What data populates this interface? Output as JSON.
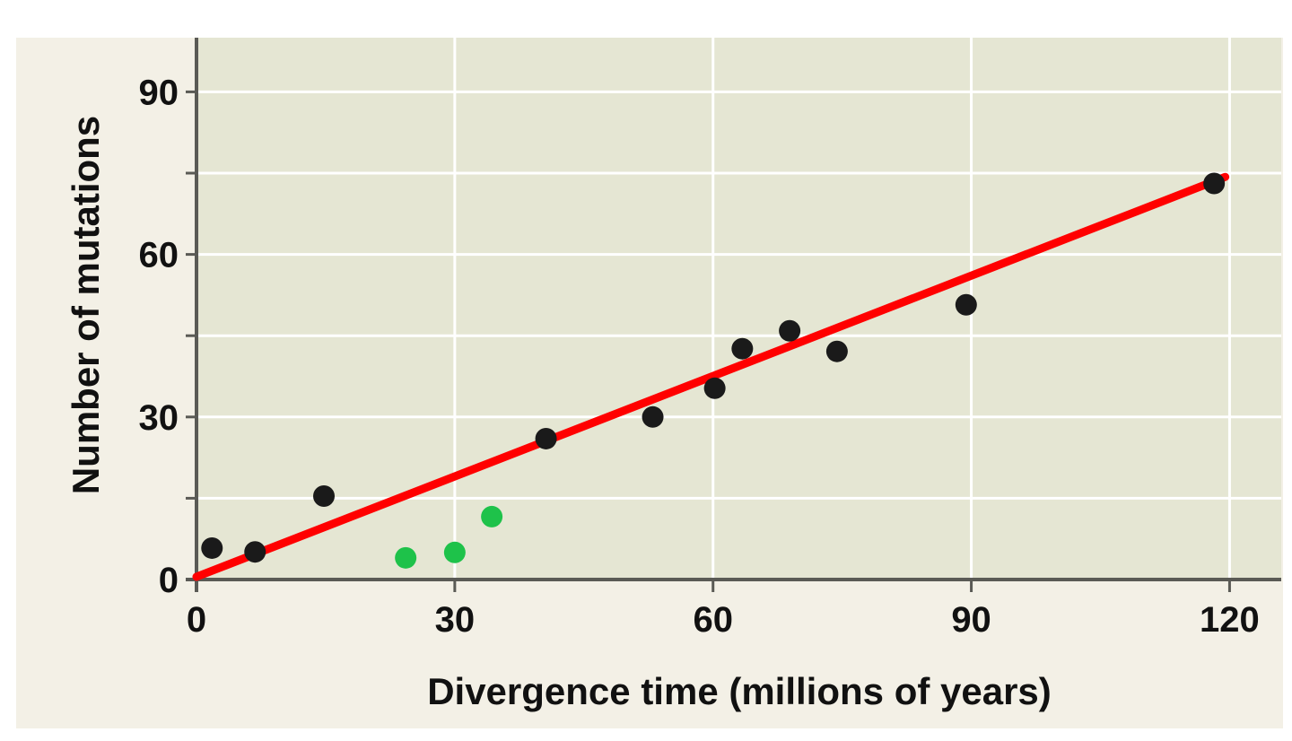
{
  "chart_data": {
    "type": "scatter",
    "title": "",
    "xlabel": "Divergence time (millions of years)",
    "ylabel": "Number of mutations",
    "xlim": [
      0,
      126
    ],
    "ylim": [
      0,
      100
    ],
    "xticks": [
      0,
      30,
      60,
      90,
      120
    ],
    "yticks": [
      0,
      30,
      60,
      90
    ],
    "y_minor_gridlines": [
      15,
      45,
      75
    ],
    "grid": true,
    "legend": "none",
    "colors": {
      "panel_bg": "#f3f0e6",
      "plot_bg": "#e5e6d3",
      "grid": "#ffffff",
      "axis": "#5a5a55",
      "trend_line": "#ff0000"
    },
    "series": [
      {
        "color": "#1a1a1a",
        "points": [
          {
            "x": 1.8,
            "y": 5.8
          },
          {
            "x": 6.8,
            "y": 5.1
          },
          {
            "x": 14.8,
            "y": 15.4
          },
          {
            "x": 40.6,
            "y": 26
          },
          {
            "x": 53,
            "y": 30
          },
          {
            "x": 60.2,
            "y": 35.3
          },
          {
            "x": 63.4,
            "y": 42.6
          },
          {
            "x": 68.9,
            "y": 45.9
          },
          {
            "x": 74.4,
            "y": 42.1
          },
          {
            "x": 89.4,
            "y": 50.7
          },
          {
            "x": 118.2,
            "y": 73.1
          }
        ]
      },
      {
        "color": "#1ec24a",
        "points": [
          {
            "x": 24.3,
            "y": 4
          },
          {
            "x": 30,
            "y": 5
          },
          {
            "x": 34.3,
            "y": 11.6
          }
        ]
      }
    ],
    "trend_line": {
      "color": "#ff0000",
      "from": {
        "x": 0,
        "y": 0.5
      },
      "to": {
        "x": 119.5,
        "y": 74.3
      }
    }
  }
}
